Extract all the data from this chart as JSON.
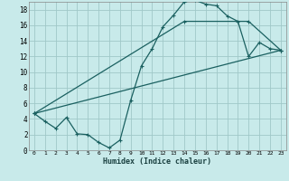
{
  "xlabel": "Humidex (Indice chaleur)",
  "bg_color": "#c8eaea",
  "grid_color": "#a0c8c8",
  "line_color": "#1a6060",
  "xlim": [
    -0.5,
    23.5
  ],
  "ylim": [
    0,
    19
  ],
  "xticks": [
    0,
    1,
    2,
    3,
    4,
    5,
    6,
    7,
    8,
    9,
    10,
    11,
    12,
    13,
    14,
    15,
    16,
    17,
    18,
    19,
    20,
    21,
    22,
    23
  ],
  "yticks": [
    0,
    2,
    4,
    6,
    8,
    10,
    12,
    14,
    16,
    18
  ],
  "series1_x": [
    0,
    1,
    2,
    3,
    4,
    5,
    6,
    7,
    8,
    9,
    10,
    11,
    12,
    13,
    14,
    15,
    16,
    17,
    18,
    19,
    20,
    21,
    22,
    23
  ],
  "series1_y": [
    4.7,
    3.7,
    2.8,
    4.2,
    2.1,
    2.0,
    1.0,
    0.3,
    1.3,
    6.4,
    10.8,
    13.0,
    15.8,
    17.3,
    19.0,
    19.2,
    18.7,
    18.5,
    17.2,
    16.5,
    12.0,
    13.8,
    13.0,
    12.8
  ],
  "series2_x": [
    0,
    23
  ],
  "series2_y": [
    4.7,
    12.8
  ],
  "series3_x": [
    0,
    14,
    20,
    23
  ],
  "series3_y": [
    4.7,
    16.5,
    16.5,
    12.8
  ]
}
